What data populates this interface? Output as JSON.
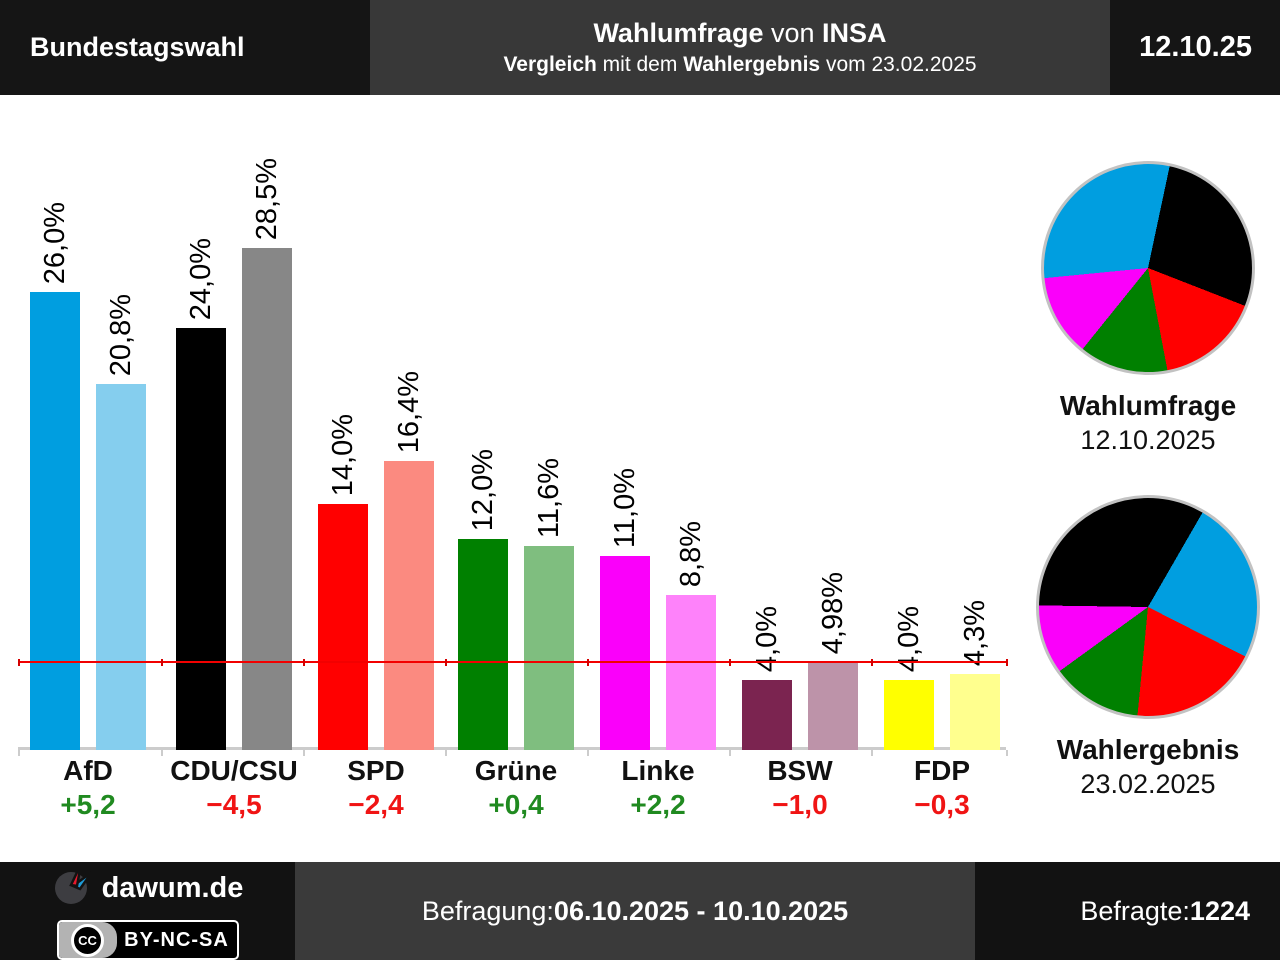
{
  "header": {
    "election": "Bundestagswahl",
    "title_bold1": "Wahlumfrage",
    "title_mid": " von ",
    "title_bold2": "INSA",
    "sub_bold1": "Vergleich",
    "sub_mid": " mit dem ",
    "sub_bold2": "Wahlergebnis",
    "sub_tail": " vom 23.02.2025",
    "date": "12.10.25"
  },
  "colors": {
    "diff_up": "#208a20",
    "diff_down": "#f01414",
    "threshold_line": "#f20000",
    "threshold_tick": "#d40000",
    "axis": "#cccccc"
  },
  "chart_data": [
    {
      "type": "bar",
      "title": "Wahlumfrage von INSA",
      "subtitle": "Vergleich mit dem Wahlergebnis vom 23.02.2025",
      "categories": [
        "AfD",
        "CDU/CSU",
        "SPD",
        "Grüne",
        "Linke",
        "BSW",
        "FDP"
      ],
      "series": [
        {
          "name": "Wahlumfrage 12.10.2025",
          "values": [
            26.0,
            24.0,
            14.0,
            12.0,
            11.0,
            4.0,
            4.0
          ],
          "labels": [
            "26,0%",
            "24,0%",
            "14,0%",
            "12,0%",
            "11,0%",
            "4,0%",
            "4,0%"
          ],
          "colors": [
            "#009ee0",
            "#000000",
            "#ff0000",
            "#008000",
            "#fa00fa",
            "#7b2450",
            "#ffff00"
          ]
        },
        {
          "name": "Wahlergebnis 23.02.2025",
          "values": [
            20.8,
            28.5,
            16.4,
            11.6,
            8.8,
            4.98,
            4.3
          ],
          "labels": [
            "20,8%",
            "28,5%",
            "16,4%",
            "11,6%",
            "8,8%",
            "4,98%",
            "4,3%"
          ],
          "colors": [
            "#85ceee",
            "#878787",
            "#fb8a80",
            "#7fbe7f",
            "#fe82fa",
            "#bd93a9",
            "#ffff8e"
          ]
        }
      ],
      "diffs": [
        "+5,2",
        "−4,5",
        "−2,4",
        "+0,4",
        "+2,2",
        "−1,0",
        "−0,3"
      ],
      "diff_directions": [
        "up",
        "down",
        "down",
        "up",
        "up",
        "down",
        "down"
      ],
      "threshold_pct": 5,
      "ylim": [
        0,
        31
      ],
      "grid": false,
      "value_labels_rotated": true,
      "legend_position": "none"
    },
    {
      "type": "pie",
      "title": "Wahlumfrage",
      "subtitle": "12.10.2025",
      "start_deg": 12,
      "slices": [
        {
          "party": "CDU/CSU",
          "color": "#000000",
          "value": 24.0
        },
        {
          "party": "SPD",
          "color": "#ff0000",
          "value": 14.0
        },
        {
          "party": "Grüne",
          "color": "#008000",
          "value": 12.0
        },
        {
          "party": "Linke",
          "color": "#fa00fa",
          "value": 11.0
        },
        {
          "party": "AfD",
          "color": "#009ee0",
          "value": 26.0
        }
      ]
    },
    {
      "type": "pie",
      "title": "Wahlergebnis",
      "subtitle": "23.02.2025",
      "start_deg": 30,
      "slices": [
        {
          "party": "AfD",
          "color": "#009ee0",
          "value": 20.8
        },
        {
          "party": "SPD",
          "color": "#ff0000",
          "value": 16.4
        },
        {
          "party": "Grüne",
          "color": "#008000",
          "value": 11.6
        },
        {
          "party": "Linke",
          "color": "#fa00fa",
          "value": 8.8
        },
        {
          "party": "CDU/CSU",
          "color": "#000000",
          "value": 28.5
        }
      ]
    }
  ],
  "footer": {
    "brand": "dawum.de",
    "cc_icon": "CC",
    "license": "BY-NC-SA",
    "befragung_label": "Befragung: ",
    "befragung_dates": "06.10.2025 - 10.10.2025",
    "befragte_label": "Befragte: ",
    "befragte_value": "1224"
  }
}
